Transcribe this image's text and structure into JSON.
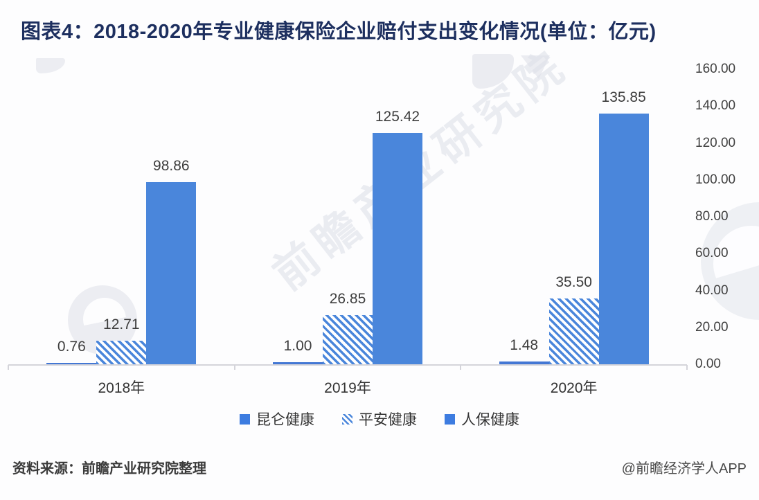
{
  "title": "图表4：2018-2020年专业健康保险企业赔付支出变化情况(单位：亿元)",
  "watermark": {
    "text": "前瞻产业研究院"
  },
  "footer": {
    "source": "资料来源：前瞻产业研究院整理",
    "credit": "@前瞻经济学人APP"
  },
  "colors": {
    "bar_blue": "#4a86db",
    "kunlun_blue": "#4377d4",
    "title_navy": "#1d2f5f",
    "axis_gray": "#d4d4da",
    "label_text": "#3d3d3d"
  },
  "chart_data": {
    "type": "bar",
    "title": "2018-2020年专业健康保险企业赔付支出变化情况",
    "unit": "亿元",
    "categories": [
      "2018年",
      "2019年",
      "2020年"
    ],
    "series": [
      {
        "name": "昆仑健康",
        "style": "solid-dark",
        "values": [
          0.76,
          1.0,
          1.48
        ]
      },
      {
        "name": "平安健康",
        "style": "hatch",
        "values": [
          12.71,
          26.85,
          35.5
        ]
      },
      {
        "name": "人保健康",
        "style": "solid",
        "values": [
          98.86,
          125.42,
          135.85
        ]
      }
    ],
    "ylim": [
      0,
      160
    ],
    "ytick_step": 20,
    "yticks": [
      "0.00",
      "20.00",
      "40.00",
      "60.00",
      "80.00",
      "100.00",
      "120.00",
      "140.00",
      "160.00"
    ],
    "yaxis_side": "right",
    "grid": false,
    "value_labels": true,
    "value_label_decimals": 2,
    "legend_position": "bottom"
  }
}
